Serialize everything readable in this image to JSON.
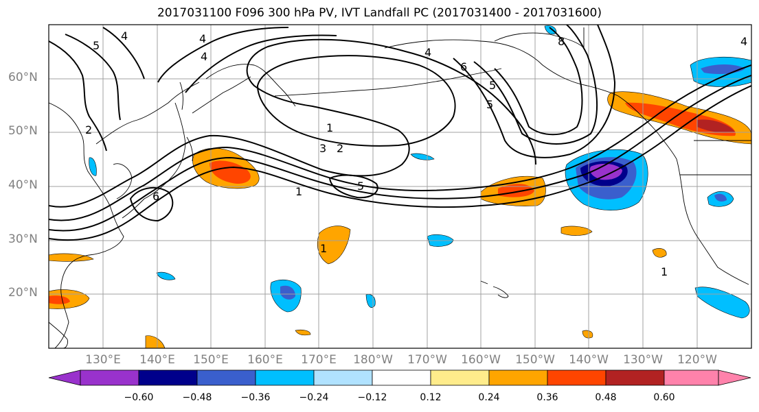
{
  "title": "2017031100 F096 300 hPa PV, IVT Landfall PC (2017031400 - 2017031600)",
  "lat_labels": [
    "60°N",
    "50°N",
    "40°N",
    "30°N",
    "20°N"
  ],
  "lon_labels": [
    "130°E",
    "140°E",
    "150°E",
    "160°E",
    "170°E",
    "180°W",
    "170°W",
    "160°W",
    "150°W",
    "140°W",
    "130°W",
    "120°W"
  ],
  "colorbar": {
    "ticks": [
      "−0.60",
      "−0.48",
      "−0.36",
      "−0.24",
      "−0.12",
      "0.12",
      "0.24",
      "0.36",
      "0.48",
      "0.60"
    ],
    "colors": [
      "#9932CC",
      "#00008B",
      "#3A5FCD",
      "#00BFFF",
      "#B0E2FF",
      "#FFFFFF",
      "#FFEC8B",
      "#FFA500",
      "#FF4500",
      "#B22222",
      "#FF82AB"
    ]
  },
  "contour_labels": [
    "5",
    "4",
    "4",
    "4",
    "2",
    "6",
    "1",
    "1",
    "3",
    "2",
    "5",
    "1",
    "6",
    "5",
    "5",
    "8",
    "4",
    "4",
    "1"
  ]
}
